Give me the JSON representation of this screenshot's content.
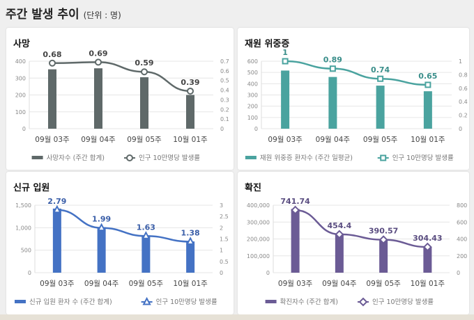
{
  "header": {
    "title": "주간 발생 추이",
    "unit": "(단위 : 명)"
  },
  "chart_data": [
    {
      "type": "bar+line",
      "title": "사망",
      "categories": [
        "09월 03주",
        "09월 04주",
        "09월 05주",
        "10월 01주"
      ],
      "series": [
        {
          "name": "사망자수 (주간 합계)",
          "type": "bar",
          "axis": "left",
          "values": [
            352,
            358,
            305,
            200
          ]
        },
        {
          "name": "인구 10만명당 발생률",
          "type": "line",
          "axis": "right",
          "marker": "circle",
          "values": [
            0.68,
            0.69,
            0.59,
            0.39
          ],
          "labels": [
            "0.68",
            "0.69",
            "0.59",
            "0.39"
          ]
        }
      ],
      "ylim_left": [
        0,
        400
      ],
      "yticks_left": [
        "0",
        "100",
        "200",
        "300",
        "400"
      ],
      "ylim_right": [
        0,
        0.7
      ],
      "yticks_right": [
        "0",
        "0.1",
        "0.2",
        "0.3",
        "0.4",
        "0.5",
        "0.6",
        "0.7"
      ],
      "color": "#5f6969",
      "label_color": "#444444",
      "legend": "bottom",
      "grid": true
    },
    {
      "type": "bar+line",
      "title": "재원 위중증",
      "categories": [
        "09월 03주",
        "09월 04주",
        "09월 05주",
        "10월 01주"
      ],
      "series": [
        {
          "name": "재원 위중증 환자수 (주간 일평균)",
          "type": "bar",
          "axis": "left",
          "values": [
            517,
            460,
            383,
            333
          ]
        },
        {
          "name": "인구 10만명당 발생률",
          "type": "line",
          "axis": "right",
          "marker": "square",
          "values": [
            1,
            0.89,
            0.74,
            0.65
          ],
          "labels": [
            "1",
            "0.89",
            "0.74",
            "0.65"
          ]
        }
      ],
      "ylim_left": [
        0,
        600
      ],
      "yticks_left": [
        "0",
        "100",
        "200",
        "300",
        "400",
        "500",
        "600"
      ],
      "ylim_right": [
        0,
        1
      ],
      "yticks_right": [
        "0",
        "0.2",
        "0.4",
        "0.6",
        "0.8",
        "1"
      ],
      "color": "#4aa39f",
      "label_color": "#3a8e8a",
      "legend": "bottom",
      "grid": true
    },
    {
      "type": "bar+line",
      "title": "신규 입원",
      "categories": [
        "09월 03주",
        "09월 04주",
        "09월 05주",
        "10월 01주"
      ],
      "series": [
        {
          "name": "신규 입원 환자 수 (주간 합계)",
          "type": "bar",
          "axis": "left",
          "values": [
            1425,
            1005,
            825,
            695
          ]
        },
        {
          "name": "인구 10만명당 발생률",
          "type": "line",
          "axis": "right",
          "marker": "triangle",
          "values": [
            2.79,
            1.99,
            1.63,
            1.38
          ],
          "labels": [
            "2.79",
            "1.99",
            "1.63",
            "1.38"
          ]
        }
      ],
      "ylim_left": [
        0,
        1500
      ],
      "yticks_left": [
        "0",
        "500",
        "1,000",
        "1,500"
      ],
      "ylim_right": [
        0,
        3
      ],
      "yticks_right": [
        "0",
        "0.5",
        "1",
        "1.5",
        "2",
        "2.5",
        "3"
      ],
      "color": "#4472c4",
      "label_color": "#3a5ea8",
      "legend": "bottom",
      "grid": true
    },
    {
      "type": "bar+line",
      "title": "확진",
      "categories": [
        "09월 03주",
        "09월 04주",
        "09월 05주",
        "10월 01주"
      ],
      "series": [
        {
          "name": "확진자수 (주간 합계)",
          "type": "bar",
          "axis": "left",
          "values": [
            378000,
            232000,
            197000,
            153000
          ]
        },
        {
          "name": "인구 10만명당 발생률",
          "type": "line",
          "axis": "right",
          "marker": "diamond",
          "values": [
            741.74,
            454.4,
            390.57,
            304.43
          ],
          "labels": [
            "741.74",
            "454.4",
            "390.57",
            "304.43"
          ]
        }
      ],
      "ylim_left": [
        0,
        400000
      ],
      "yticks_left": [
        "0",
        "100,000",
        "200,000",
        "300,000",
        "400,000"
      ],
      "ylim_right": [
        0,
        800
      ],
      "yticks_right": [
        "0",
        "200",
        "400",
        "600",
        "800"
      ],
      "color": "#6b5b95",
      "label_color": "#5a4d80",
      "legend": "bottom",
      "grid": true
    }
  ]
}
